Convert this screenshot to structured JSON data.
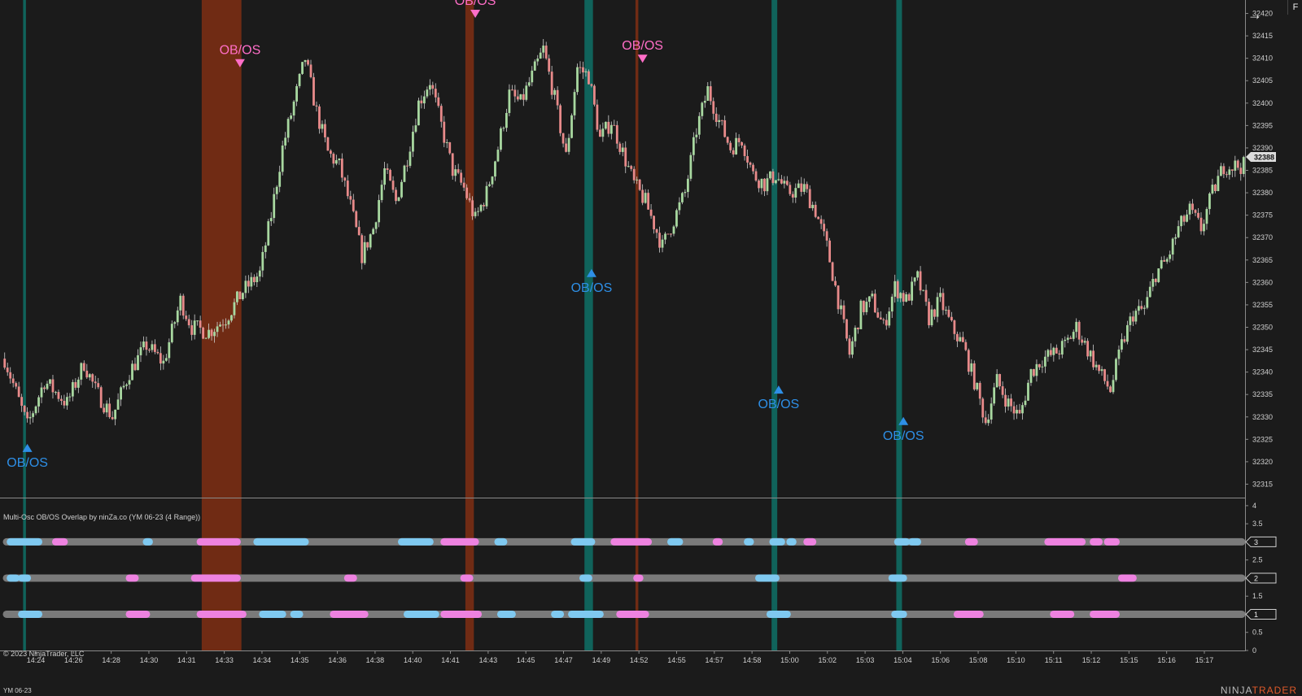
{
  "window": {
    "indicator_title": "Multi-Osc OB/OS Overlap by ninZa.co (YM 06-23 (4 Range))",
    "copyright": "© 2023 NinjaTrader, LLC",
    "instrument": "YM 06-23",
    "brand_prefix": "NINJA",
    "brand_suffix": "TRADER",
    "arrow_icon": "arrow-right-icon",
    "f_label": "F"
  },
  "colors": {
    "background": "#1b1b1b",
    "up_bar": "#a8d8a0",
    "down_bar": "#e88a8a",
    "wick": "#cfcfcf",
    "overbought_zone": "#7a2e14",
    "oversold_zone": "#0f6b63",
    "overbought_marker": "#ff6ec7",
    "oversold_marker": "#2e8fe6",
    "band_gray": "#7a7a7a",
    "band_pink": "#ee82e0",
    "band_blue": "#7fc9f0"
  },
  "chart_data": {
    "type": "candlestick",
    "price_axis": {
      "ticks": [
        32315,
        32320,
        32325,
        32330,
        32335,
        32340,
        32345,
        32350,
        32355,
        32360,
        32365,
        32370,
        32375,
        32380,
        32385,
        32390,
        32395,
        32400,
        32405,
        32410,
        32415,
        32420
      ],
      "range": [
        32312,
        32423
      ],
      "current_price": "32388"
    },
    "time_axis": {
      "ticks": [
        "14:24",
        "14:26",
        "14:28",
        "14:30",
        "14:31",
        "14:33",
        "14:34",
        "14:35",
        "14:36",
        "14:38",
        "14:40",
        "14:41",
        "14:43",
        "14:45",
        "14:47",
        "14:49",
        "14:52",
        "14:55",
        "14:57",
        "14:58",
        "15:00",
        "15:02",
        "15:03",
        "15:04",
        "15:06",
        "15:08",
        "15:10",
        "15:11",
        "15:12",
        "15:15",
        "15:16",
        "15:17"
      ],
      "bar_count": 206
    },
    "price_path": [
      [
        0,
        32343
      ],
      [
        8,
        32328
      ],
      [
        14,
        32338
      ],
      [
        22,
        32333
      ],
      [
        28,
        32342
      ],
      [
        32,
        32336
      ],
      [
        38,
        32330
      ],
      [
        44,
        32340
      ],
      [
        50,
        32346
      ],
      [
        56,
        32342
      ],
      [
        62,
        32356
      ],
      [
        66,
        32350
      ],
      [
        72,
        32349
      ],
      [
        78,
        32352
      ],
      [
        84,
        32358
      ],
      [
        90,
        32362
      ],
      [
        94,
        32375
      ],
      [
        98,
        32390
      ],
      [
        102,
        32400
      ],
      [
        106,
        32410
      ],
      [
        110,
        32398
      ],
      [
        114,
        32389
      ],
      [
        118,
        32386
      ],
      [
        122,
        32377
      ],
      [
        126,
        32366
      ],
      [
        130,
        32372
      ],
      [
        134,
        32385
      ],
      [
        138,
        32378
      ],
      [
        142,
        32388
      ],
      [
        146,
        32400
      ],
      [
        150,
        32405
      ],
      [
        154,
        32395
      ],
      [
        158,
        32385
      ],
      [
        162,
        32381
      ],
      [
        166,
        32374
      ],
      [
        170,
        32380
      ],
      [
        174,
        32390
      ],
      [
        178,
        32402
      ],
      [
        182,
        32400
      ],
      [
        186,
        32406
      ],
      [
        190,
        32412
      ],
      [
        194,
        32401
      ],
      [
        198,
        32388
      ],
      [
        202,
        32408
      ],
      [
        206,
        32406
      ],
      [
        210,
        32392
      ],
      [
        214,
        32396
      ],
      [
        218,
        32389
      ],
      [
        222,
        32382
      ],
      [
        226,
        32378
      ],
      [
        232,
        32368
      ],
      [
        236,
        32374
      ],
      [
        240,
        32380
      ],
      [
        244,
        32394
      ],
      [
        248,
        32403
      ],
      [
        252,
        32396
      ],
      [
        256,
        32390
      ],
      [
        260,
        32392
      ],
      [
        264,
        32384
      ],
      [
        268,
        32382
      ],
      [
        272,
        32384
      ],
      [
        276,
        32380
      ],
      [
        282,
        32381
      ],
      [
        286,
        32376
      ],
      [
        290,
        32368
      ],
      [
        294,
        32356
      ],
      [
        298,
        32344
      ],
      [
        302,
        32354
      ],
      [
        306,
        32356
      ],
      [
        310,
        32350
      ],
      [
        314,
        32359
      ],
      [
        318,
        32356
      ],
      [
        322,
        32361
      ],
      [
        326,
        32352
      ],
      [
        330,
        32356
      ],
      [
        334,
        32350
      ],
      [
        338,
        32346
      ],
      [
        342,
        32338
      ],
      [
        346,
        32329
      ],
      [
        350,
        32338
      ],
      [
        354,
        32333
      ],
      [
        358,
        32330
      ],
      [
        362,
        32340
      ],
      [
        366,
        32343
      ],
      [
        370,
        32344
      ],
      [
        374,
        32346
      ],
      [
        378,
        32350
      ],
      [
        382,
        32345
      ],
      [
        386,
        32340
      ],
      [
        390,
        32336
      ],
      [
        394,
        32346
      ],
      [
        398,
        32353
      ],
      [
        402,
        32354
      ],
      [
        406,
        32362
      ],
      [
        410,
        32365
      ],
      [
        414,
        32372
      ],
      [
        418,
        32376
      ],
      [
        422,
        32372
      ],
      [
        426,
        32380
      ],
      [
        430,
        32386
      ]
    ],
    "zones": [
      {
        "type": "oversold",
        "start_bar": 7,
        "end_bar": 7
      },
      {
        "type": "overbought",
        "start_bar": 70,
        "end_bar": 83
      },
      {
        "type": "overbought",
        "start_bar": 163,
        "end_bar": 165
      },
      {
        "type": "oversold",
        "start_bar": 205,
        "end_bar": 207
      },
      {
        "type": "overbought",
        "start_bar": 223,
        "end_bar": 223
      },
      {
        "type": "oversold",
        "start_bar": 271,
        "end_bar": 272
      },
      {
        "type": "oversold",
        "start_bar": 315,
        "end_bar": 316
      }
    ],
    "signals": [
      {
        "type": "oversold",
        "bar": 8,
        "price": 32324,
        "label": "OB/OS"
      },
      {
        "type": "overbought",
        "bar": 83,
        "price": 32408,
        "label": "OB/OS"
      },
      {
        "type": "overbought",
        "bar": 166,
        "price": 32419,
        "label": "OB/OS"
      },
      {
        "type": "oversold",
        "bar": 207,
        "price": 32363,
        "label": "OB/OS"
      },
      {
        "type": "overbought",
        "bar": 225,
        "price": 32409,
        "label": "OB/OS"
      },
      {
        "type": "oversold",
        "bar": 273,
        "price": 32337,
        "label": "OB/OS"
      },
      {
        "type": "oversold",
        "bar": 317,
        "price": 32330,
        "label": "OB/OS"
      }
    ],
    "indicator_panel": {
      "ticks": [
        "0",
        "0.5",
        "1",
        "1.5",
        "2",
        "2.5",
        "3",
        "3.5",
        "4"
      ],
      "range": [
        0,
        4.2
      ],
      "current_labels": [
        "3",
        "2",
        "1"
      ],
      "bands": [
        {
          "level": 3,
          "segments": [
            [
              "blue",
              2,
              12
            ],
            [
              "pink",
              18,
              21
            ],
            [
              "blue",
              50,
              51
            ],
            [
              "pink",
              69,
              82
            ],
            [
              "blue",
              89,
              106
            ],
            [
              "blue",
              140,
              150
            ],
            [
              "pink",
              155,
              166
            ],
            [
              "blue",
              174,
              176
            ],
            [
              "blue",
              201,
              207
            ],
            [
              "pink",
              215,
              227
            ],
            [
              "blue",
              235,
              238
            ],
            [
              "pink",
              251,
              252
            ],
            [
              "blue",
              262,
              263
            ],
            [
              "blue",
              271,
              274
            ],
            [
              "blue",
              277,
              278
            ],
            [
              "pink",
              283,
              285
            ],
            [
              "blue",
              315,
              318
            ],
            [
              "blue",
              320,
              322
            ],
            [
              "pink",
              340,
              342
            ],
            [
              "pink",
              368,
              380
            ],
            [
              "pink",
              384,
              386
            ],
            [
              "pink",
              389,
              392
            ]
          ]
        },
        {
          "level": 2,
          "segments": [
            [
              "blue",
              2,
              4
            ],
            [
              "blue",
              6,
              8
            ],
            [
              "pink",
              44,
              46
            ],
            [
              "pink",
              67,
              82
            ],
            [
              "pink",
              121,
              123
            ],
            [
              "pink",
              162,
              164
            ],
            [
              "blue",
              204,
              206
            ],
            [
              "pink",
              223,
              224
            ],
            [
              "blue",
              266,
              272
            ],
            [
              "blue",
              313,
              317
            ],
            [
              "pink",
              394,
              396
            ],
            [
              "pink",
              396,
              398
            ]
          ]
        },
        {
          "level": 1,
          "segments": [
            [
              "blue",
              6,
              12
            ],
            [
              "pink",
              44,
              50
            ],
            [
              "pink",
              69,
              84
            ],
            [
              "blue",
              91,
              98
            ],
            [
              "blue",
              102,
              104
            ],
            [
              "pink",
              116,
              127
            ],
            [
              "blue",
              142,
              152
            ],
            [
              "pink",
              155,
              167
            ],
            [
              "blue",
              175,
              179
            ],
            [
              "blue",
              194,
              196
            ],
            [
              "blue",
              200,
              210
            ],
            [
              "pink",
              217,
              226
            ],
            [
              "blue",
              270,
              276
            ],
            [
              "blue",
              314,
              317
            ],
            [
              "pink",
              336,
              344
            ],
            [
              "pink",
              370,
              376
            ],
            [
              "pink",
              384,
              392
            ]
          ]
        }
      ]
    }
  }
}
